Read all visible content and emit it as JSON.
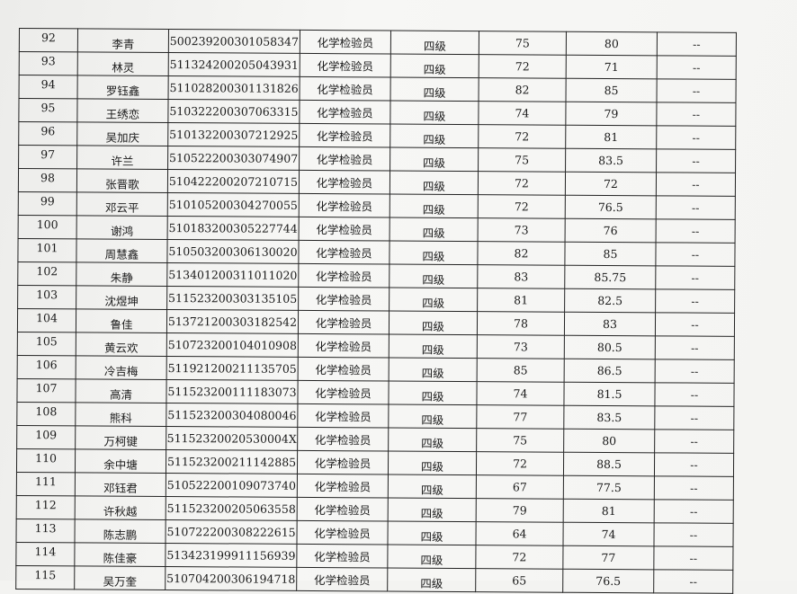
{
  "table": {
    "rows": [
      [
        "92",
        "李青",
        "500239200301058347",
        "化学检验员",
        "四级",
        "75",
        "80",
        "--"
      ],
      [
        "93",
        "林灵",
        "511324200205043931",
        "化学检验员",
        "四级",
        "72",
        "71",
        "--"
      ],
      [
        "94",
        "罗钰鑫",
        "511028200301131826",
        "化学检验员",
        "四级",
        "82",
        "85",
        "--"
      ],
      [
        "95",
        "王绣恋",
        "510322200307063315",
        "化学检验员",
        "四级",
        "74",
        "79",
        "--"
      ],
      [
        "96",
        "吴加庆",
        "510132200307212925",
        "化学检验员",
        "四级",
        "72",
        "81",
        "--"
      ],
      [
        "97",
        "许兰",
        "510522200303074907",
        "化学检验员",
        "四级",
        "75",
        "83.5",
        "--"
      ],
      [
        "98",
        "张晋歌",
        "510422200207210715",
        "化学检验员",
        "四级",
        "72",
        "72",
        "--"
      ],
      [
        "99",
        "邓云平",
        "510105200304270055",
        "化学检验员",
        "四级",
        "72",
        "76.5",
        "--"
      ],
      [
        "100",
        "谢鸿",
        "510183200305227744",
        "化学检验员",
        "四级",
        "73",
        "76",
        "--"
      ],
      [
        "101",
        "周慧鑫",
        "510503200306130020",
        "化学检验员",
        "四级",
        "82",
        "85",
        "--"
      ],
      [
        "102",
        "朱静",
        "513401200311011020",
        "化学检验员",
        "四级",
        "83",
        "85.75",
        "--"
      ],
      [
        "103",
        "沈煜坤",
        "511523200303135105",
        "化学检验员",
        "四级",
        "81",
        "82.5",
        "--"
      ],
      [
        "104",
        "鲁佳",
        "513721200303182542",
        "化学检验员",
        "四级",
        "78",
        "83",
        "--"
      ],
      [
        "105",
        "黄云欢",
        "510723200104010908",
        "化学检验员",
        "四级",
        "73",
        "80.5",
        "--"
      ],
      [
        "106",
        "冷吉梅",
        "511921200211135705",
        "化学检验员",
        "四级",
        "85",
        "86.5",
        "--"
      ],
      [
        "107",
        "高清",
        "511523200111183073",
        "化学检验员",
        "四级",
        "74",
        "81.5",
        "--"
      ],
      [
        "108",
        "熊科",
        "511523200304080046",
        "化学检验员",
        "四级",
        "77",
        "83.5",
        "--"
      ],
      [
        "109",
        "万柯键",
        "51152320020530004X",
        "化学检验员",
        "四级",
        "75",
        "80",
        "--"
      ],
      [
        "110",
        "余中塘",
        "511523200211142885",
        "化学检验员",
        "四级",
        "72",
        "88.5",
        "--"
      ],
      [
        "111",
        "邓钰君",
        "510522200109073740",
        "化学检验员",
        "四级",
        "67",
        "77.5",
        "--"
      ],
      [
        "112",
        "许秋越",
        "511523200205063558",
        "化学检验员",
        "四级",
        "79",
        "81",
        "--"
      ],
      [
        "113",
        "陈志鹏",
        "510722200308222615",
        "化学检验员",
        "四级",
        "64",
        "74",
        "--"
      ],
      [
        "114",
        "陈佳豪",
        "513423199911156939",
        "化学检验员",
        "四级",
        "72",
        "77",
        "--"
      ],
      [
        "115",
        "吴万奎",
        "510704200306194718",
        "化学检验员",
        "四级",
        "65",
        "76.5",
        "--"
      ]
    ]
  }
}
